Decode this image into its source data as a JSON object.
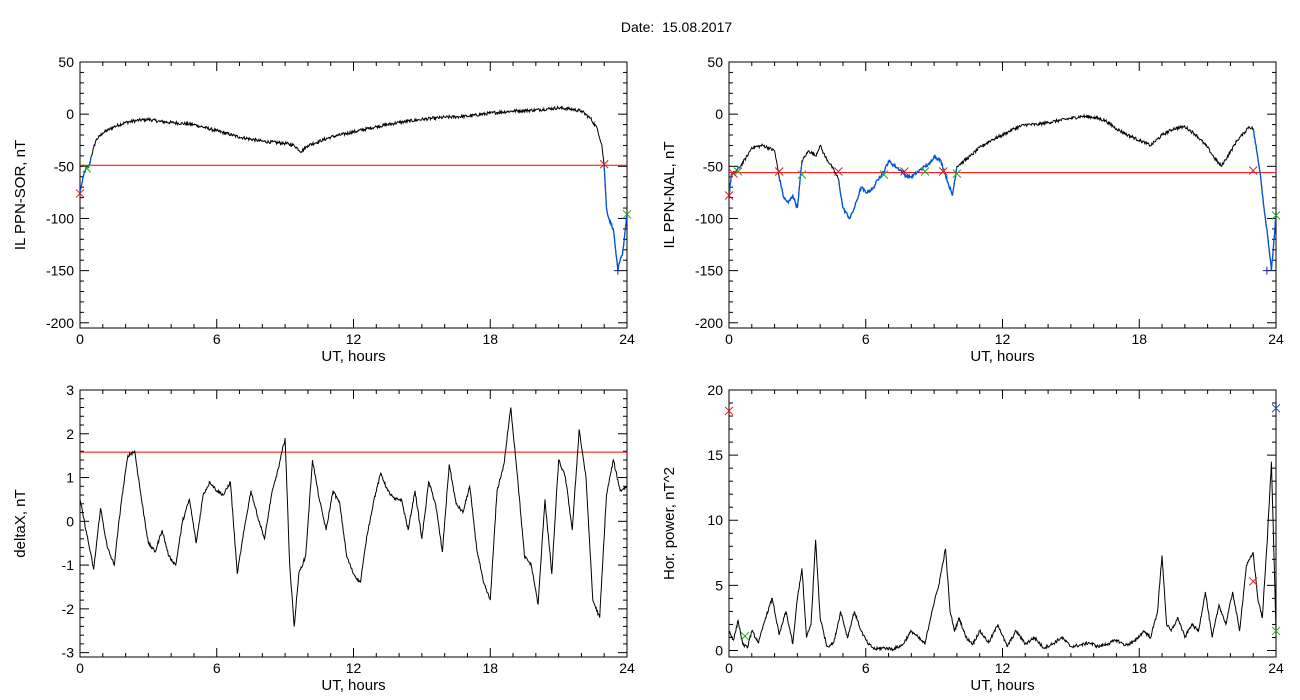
{
  "figure_title": "Date:  15.08.2017",
  "colors": {
    "axes": "#000000",
    "threshold": "#ff0000",
    "disturbed": "#0055dd",
    "onset_mark": "#dd2222",
    "end_mark": "#22aa22"
  },
  "chart_data": [
    {
      "type": "line",
      "title": "",
      "xlabel": "UT, hours",
      "ylabel": "IL PPN-SOR, nT",
      "xlim": [
        0,
        24
      ],
      "ylim": [
        -205,
        50
      ],
      "xticks": [
        0,
        6,
        12,
        18,
        24
      ],
      "yticks": [
        50,
        0,
        -50,
        -100,
        -150,
        -200
      ],
      "threshold": -49,
      "x": [
        0,
        0.1,
        0.2,
        0.3,
        0.4,
        0.5,
        0.7,
        1.0,
        1.5,
        2.0,
        2.5,
        3.0,
        3.5,
        4.0,
        5.0,
        6.0,
        7.0,
        8.0,
        9.0,
        9.4,
        9.7,
        10.0,
        11.0,
        12.0,
        13.0,
        14.0,
        15.0,
        16.0,
        17.0,
        18.0,
        19.0,
        20.0,
        20.5,
        21.0,
        21.5,
        22.0,
        22.4,
        22.7,
        22.9,
        23.0,
        23.1,
        23.2,
        23.4,
        23.5,
        23.6,
        23.7,
        23.8,
        24.0
      ],
      "y": [
        -75,
        -65,
        -55,
        -52,
        -50,
        -40,
        -25,
        -18,
        -12,
        -8,
        -6,
        -5,
        -7,
        -8,
        -10,
        -16,
        -22,
        -26,
        -28,
        -30,
        -36,
        -30,
        -22,
        -17,
        -12,
        -8,
        -5,
        -3,
        -2,
        1,
        3,
        4,
        5,
        6,
        5,
        3,
        -4,
        -14,
        -30,
        -50,
        -90,
        -100,
        -110,
        -130,
        -150,
        -140,
        -135,
        -95
      ],
      "disturbed_segments": [
        {
          "from": 0,
          "to": 0.5
        },
        {
          "from": 23.0,
          "to": 24
        }
      ],
      "markers": [
        {
          "x": 0.0,
          "y": -76,
          "symbol": "x",
          "color": "red"
        },
        {
          "x": 0.3,
          "y": -52,
          "symbol": "x",
          "color": "green"
        },
        {
          "x": 23.0,
          "y": -48,
          "symbol": "x",
          "color": "red"
        },
        {
          "x": 23.6,
          "y": -150,
          "symbol": "plus",
          "color": "navy"
        },
        {
          "x": 24.0,
          "y": -96,
          "symbol": "x",
          "color": "green"
        }
      ]
    },
    {
      "type": "line",
      "title": "",
      "xlabel": "UT, hours",
      "ylabel": "IL PPN-NAL, nT",
      "xlim": [
        0,
        24
      ],
      "ylim": [
        -205,
        50
      ],
      "xticks": [
        0,
        6,
        12,
        18,
        24
      ],
      "yticks": [
        50,
        0,
        -50,
        -100,
        -150,
        -200
      ],
      "threshold": -56,
      "x": [
        0,
        0.1,
        0.3,
        0.5,
        0.8,
        1.0,
        1.5,
        2.0,
        2.2,
        2.4,
        2.6,
        2.8,
        3.0,
        3.2,
        3.5,
        3.8,
        4.0,
        4.2,
        4.5,
        4.8,
        5.0,
        5.3,
        5.5,
        5.8,
        6.0,
        6.3,
        6.6,
        6.8,
        7.0,
        7.3,
        7.6,
        7.8,
        8.0,
        8.3,
        8.6,
        8.8,
        9.0,
        9.3,
        9.6,
        9.8,
        10.0,
        10.3,
        10.6,
        11.0,
        11.5,
        12.0,
        12.5,
        13.0,
        13.5,
        14.0,
        14.5,
        15.0,
        15.5,
        16.0,
        16.5,
        17.0,
        17.5,
        18.0,
        18.5,
        19.0,
        19.5,
        20.0,
        20.5,
        21.0,
        21.3,
        21.6,
        22.0,
        22.3,
        22.6,
        22.8,
        23.0,
        23.1,
        23.3,
        23.5,
        23.6,
        23.7,
        23.8,
        24.0
      ],
      "y": [
        -80,
        -58,
        -55,
        -50,
        -40,
        -32,
        -30,
        -35,
        -60,
        -80,
        -85,
        -78,
        -90,
        -45,
        -35,
        -40,
        -30,
        -40,
        -50,
        -62,
        -90,
        -100,
        -90,
        -70,
        -75,
        -72,
        -60,
        -55,
        -45,
        -50,
        -55,
        -60,
        -60,
        -55,
        -50,
        -48,
        -40,
        -45,
        -65,
        -78,
        -50,
        -45,
        -40,
        -32,
        -25,
        -20,
        -14,
        -10,
        -10,
        -8,
        -6,
        -4,
        -2,
        -3,
        -6,
        -14,
        -20,
        -25,
        -30,
        -20,
        -14,
        -12,
        -20,
        -32,
        -42,
        -50,
        -36,
        -25,
        -18,
        -12,
        -14,
        -28,
        -55,
        -95,
        -110,
        -130,
        -150,
        -97
      ],
      "disturbed_segments": [
        {
          "from": 0,
          "to": 0.5
        },
        {
          "from": 2.2,
          "to": 3.2
        },
        {
          "from": 4.8,
          "to": 10.0
        },
        {
          "from": 23.0,
          "to": 24
        }
      ],
      "markers": [
        {
          "x": 0.0,
          "y": -78,
          "symbol": "x",
          "color": "red"
        },
        {
          "x": 0.2,
          "y": -57,
          "symbol": "x",
          "color": "red"
        },
        {
          "x": 0.4,
          "y": -55,
          "symbol": "x",
          "color": "green"
        },
        {
          "x": 2.2,
          "y": -55,
          "symbol": "x",
          "color": "red"
        },
        {
          "x": 3.2,
          "y": -58,
          "symbol": "x",
          "color": "green"
        },
        {
          "x": 4.8,
          "y": -55,
          "symbol": "x",
          "color": "red"
        },
        {
          "x": 6.8,
          "y": -58,
          "symbol": "x",
          "color": "green"
        },
        {
          "x": 7.7,
          "y": -55,
          "symbol": "x",
          "color": "red"
        },
        {
          "x": 8.6,
          "y": -55,
          "symbol": "x",
          "color": "green"
        },
        {
          "x": 9.4,
          "y": -55,
          "symbol": "x",
          "color": "red"
        },
        {
          "x": 10.0,
          "y": -57,
          "symbol": "x",
          "color": "green"
        },
        {
          "x": 23.0,
          "y": -54,
          "symbol": "x",
          "color": "red"
        },
        {
          "x": 23.6,
          "y": -150,
          "symbol": "plus",
          "color": "navy"
        },
        {
          "x": 24.0,
          "y": -97,
          "symbol": "x",
          "color": "green"
        }
      ]
    },
    {
      "type": "line",
      "title": "",
      "xlabel": "UT, hours",
      "ylabel": "deltaX, nT",
      "xlim": [
        0,
        24
      ],
      "ylim": [
        -3.1,
        3.0
      ],
      "xticks": [
        0,
        6,
        12,
        18,
        24
      ],
      "yticks": [
        3,
        2,
        1,
        0,
        -1,
        -2,
        -3
      ],
      "threshold": 1.58,
      "x": [
        0,
        0.3,
        0.6,
        0.9,
        1.2,
        1.5,
        1.8,
        2.1,
        2.4,
        2.7,
        3.0,
        3.3,
        3.6,
        3.9,
        4.2,
        4.5,
        4.8,
        5.1,
        5.4,
        5.7,
        6.0,
        6.3,
        6.6,
        6.9,
        7.2,
        7.5,
        7.8,
        8.1,
        8.4,
        8.7,
        9.0,
        9.2,
        9.4,
        9.6,
        9.9,
        10.2,
        10.5,
        10.8,
        11.1,
        11.4,
        11.7,
        12.0,
        12.3,
        12.6,
        12.9,
        13.2,
        13.5,
        13.8,
        14.1,
        14.4,
        14.7,
        15.0,
        15.3,
        15.6,
        15.9,
        16.2,
        16.5,
        16.8,
        17.1,
        17.4,
        17.7,
        18.0,
        18.3,
        18.6,
        18.9,
        19.2,
        19.5,
        19.8,
        20.1,
        20.4,
        20.7,
        21.0,
        21.3,
        21.6,
        21.9,
        22.2,
        22.5,
        22.8,
        23.1,
        23.4,
        23.7,
        24.0
      ],
      "y": [
        0.5,
        -0.3,
        -1.1,
        0.3,
        -0.6,
        -1.0,
        0.4,
        1.5,
        1.6,
        0.5,
        -0.5,
        -0.7,
        -0.2,
        -0.8,
        -1.0,
        0.0,
        0.5,
        -0.5,
        0.6,
        0.9,
        0.7,
        0.6,
        0.9,
        -1.2,
        -0.2,
        0.7,
        0.1,
        -0.4,
        0.6,
        1.2,
        1.9,
        -1.0,
        -2.4,
        -1.2,
        -0.8,
        1.4,
        0.5,
        -0.2,
        0.7,
        0.4,
        -0.8,
        -1.2,
        -1.4,
        -0.3,
        0.5,
        1.1,
        0.7,
        0.5,
        0.5,
        -0.2,
        0.7,
        -0.4,
        0.9,
        0.4,
        -0.7,
        1.3,
        0.4,
        0.2,
        0.8,
        -0.6,
        -1.4,
        -1.8,
        0.7,
        1.3,
        2.6,
        1.0,
        -0.8,
        -1.0,
        -1.9,
        0.5,
        -1.2,
        1.4,
        1.0,
        -0.2,
        2.1,
        1.0,
        -1.8,
        -2.2,
        0.6,
        1.4,
        0.7,
        0.8
      ]
    },
    {
      "type": "line",
      "title": "",
      "xlabel": "UT, hours",
      "ylabel": "Hor. power, nT^2",
      "xlim": [
        0,
        24
      ],
      "ylim": [
        -0.5,
        20
      ],
      "xticks": [
        0,
        6,
        12,
        18,
        24
      ],
      "yticks": [
        20,
        15,
        10,
        5,
        0
      ],
      "x": [
        0,
        0.2,
        0.4,
        0.6,
        0.8,
        1.0,
        1.3,
        1.6,
        1.9,
        2.2,
        2.5,
        2.8,
        3.0,
        3.2,
        3.4,
        3.6,
        3.8,
        4.0,
        4.3,
        4.6,
        4.9,
        5.2,
        5.5,
        5.8,
        6.1,
        6.4,
        6.8,
        7.2,
        7.6,
        8.0,
        8.3,
        8.6,
        8.9,
        9.2,
        9.5,
        9.7,
        9.9,
        10.1,
        10.4,
        10.7,
        11.0,
        11.4,
        11.8,
        12.2,
        12.6,
        13.0,
        13.4,
        13.8,
        14.2,
        14.6,
        15.0,
        15.4,
        15.8,
        16.2,
        16.6,
        17.0,
        17.4,
        17.8,
        18.2,
        18.5,
        18.8,
        19.0,
        19.2,
        19.4,
        19.7,
        20.0,
        20.3,
        20.6,
        20.9,
        21.2,
        21.5,
        21.8,
        22.1,
        22.4,
        22.7,
        23.0,
        23.2,
        23.4,
        23.6,
        23.8,
        24.0
      ],
      "y": [
        1.5,
        0.8,
        2.3,
        0.5,
        0.2,
        1.5,
        0.6,
        2.5,
        4.0,
        1.2,
        3.0,
        0.5,
        4.0,
        6.3,
        1.0,
        2.0,
        8.5,
        2.5,
        0.3,
        0.6,
        3.0,
        1.0,
        3.0,
        1.5,
        0.5,
        0.1,
        0.2,
        0.1,
        0.4,
        1.5,
        1.0,
        0.5,
        3.0,
        5.0,
        7.8,
        3.0,
        1.5,
        2.5,
        1.0,
        0.5,
        1.5,
        0.6,
        2.0,
        0.3,
        1.5,
        0.5,
        1.0,
        0.2,
        0.5,
        1.0,
        0.3,
        0.4,
        0.6,
        0.3,
        0.5,
        0.8,
        0.4,
        0.7,
        1.5,
        1.0,
        3.0,
        7.3,
        2.0,
        1.5,
        2.5,
        1.0,
        2.0,
        1.5,
        4.5,
        1.0,
        3.5,
        2.0,
        4.5,
        1.5,
        6.5,
        7.5,
        4.0,
        2.5,
        8.0,
        14.5,
        1.5
      ],
      "markers": [
        {
          "x": 0.0,
          "y": 18.4,
          "symbol": "x",
          "color": "red"
        },
        {
          "x": 0.7,
          "y": 1.1,
          "symbol": "x",
          "color": "green"
        },
        {
          "x": 23.0,
          "y": 5.3,
          "symbol": "x",
          "color": "red"
        },
        {
          "x": 24.0,
          "y": 18.6,
          "symbol": "x",
          "color": "blue"
        },
        {
          "x": 24.0,
          "y": 1.5,
          "symbol": "x",
          "color": "green"
        }
      ]
    }
  ]
}
